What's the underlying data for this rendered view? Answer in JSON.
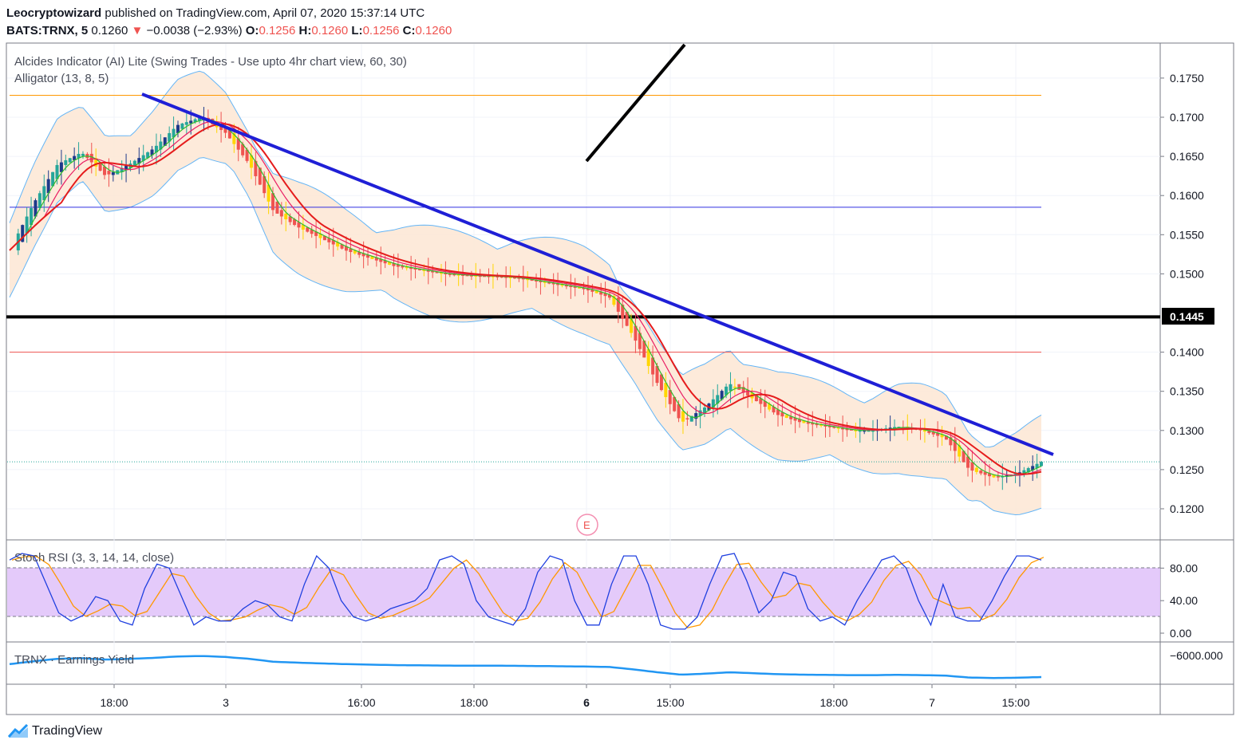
{
  "header": {
    "author": "Leocryptowizard",
    "published": "published on TradingView.com, April 07, 2020 15:37:14 UTC",
    "symbol": "BATS:TRNX, 5",
    "last": "0.1260",
    "change": "−0.0038 (−2.93%)",
    "o_label": "O:",
    "o": "0.1256",
    "h_label": "H:",
    "h": "0.1260",
    "l_label": "L:",
    "l": "0.1256",
    "c_label": "C:",
    "c": "0.1260"
  },
  "main": {
    "indicator1": "Alcides Indicator (AI) Lite (Swing Trades - Use upto 4hr chart view, 60, 30)",
    "indicator2": "Alligator (13, 8, 5)",
    "price_ticks": [
      "0.1750",
      "0.1700",
      "0.1650",
      "0.1600",
      "0.1550",
      "0.1500",
      "0.1400",
      "0.1350",
      "0.1300",
      "0.1250",
      "0.1200"
    ],
    "current_level": "0.1445",
    "earnings_marker": "E"
  },
  "stoch": {
    "title": "Stoch RSI (3, 3, 14, 14, close)",
    "ticks": [
      "80.00",
      "40.00",
      "0.00"
    ]
  },
  "earnings": {
    "title": "TRNX · Earnings Yield",
    "tick": "−6000.000"
  },
  "time_axis": [
    "18:00",
    "3",
    "16:00",
    "18:00",
    "6",
    "15:00",
    "18:00",
    "7",
    "15:00"
  ],
  "brand": "TradingView",
  "colors": {
    "up": "#26a69a",
    "down": "#ef5350",
    "yellow": "#ffd600",
    "trend": "#1f1fd6",
    "band": "#fde6d3",
    "band_line": "#64b5f6",
    "stoch_fill": "#e1c4f9",
    "earnings_line": "#2196f3",
    "k_line": "#2040e0",
    "d_line": "#ff9800"
  },
  "chart_data": {
    "type": "line",
    "title": "BATS:TRNX, 5",
    "ylim": [
      0.1165,
      0.179
    ],
    "x_labels": [
      "18:00",
      "3",
      "16:00",
      "18:00",
      "6",
      "15:00",
      "18:00",
      "7",
      "15:00"
    ],
    "horizontal_levels": {
      "resistance_top": 0.1728,
      "blue_level": 0.1585,
      "black_level": 0.1445,
      "red_level": 0.14,
      "last_price": 0.126
    },
    "series": [
      {
        "values": [
          0.153,
          0.159,
          0.164,
          0.1655,
          0.1625,
          0.164,
          0.166,
          0.169,
          0.17,
          0.168,
          0.164,
          0.158,
          0.156,
          0.1545,
          0.153,
          0.152,
          0.151,
          0.1505,
          0.15,
          0.1498,
          0.1497,
          0.1495,
          0.149,
          0.1485,
          0.148,
          0.147,
          0.142,
          0.136,
          0.131,
          0.133,
          0.136,
          0.134,
          0.132,
          0.131,
          0.1305,
          0.13,
          0.13,
          0.1305,
          0.13,
          0.129,
          0.125,
          0.124,
          0.1245,
          0.126
        ]
      }
    ],
    "stoch_rsi": {
      "ylim": [
        0,
        100
      ],
      "band": [
        20,
        80
      ],
      "k": [
        90,
        98,
        95,
        60,
        25,
        15,
        22,
        45,
        40,
        15,
        10,
        55,
        85,
        80,
        45,
        10,
        20,
        15,
        15,
        30,
        40,
        35,
        20,
        15,
        60,
        95,
        80,
        40,
        20,
        15,
        20,
        30,
        35,
        40,
        55,
        90,
        95,
        85,
        40,
        20,
        15,
        10,
        30,
        75,
        95,
        90,
        40,
        10,
        10,
        60,
        95,
        95,
        60,
        10,
        5,
        5,
        20,
        60,
        95,
        98,
        65,
        25,
        40,
        75,
        70,
        30,
        15,
        20,
        10,
        40,
        65,
        90,
        95,
        80,
        40,
        10,
        60,
        20,
        15,
        15,
        40,
        70,
        95,
        95,
        90
      ]
    },
    "earnings_yield": {
      "tick": -6000
    }
  }
}
